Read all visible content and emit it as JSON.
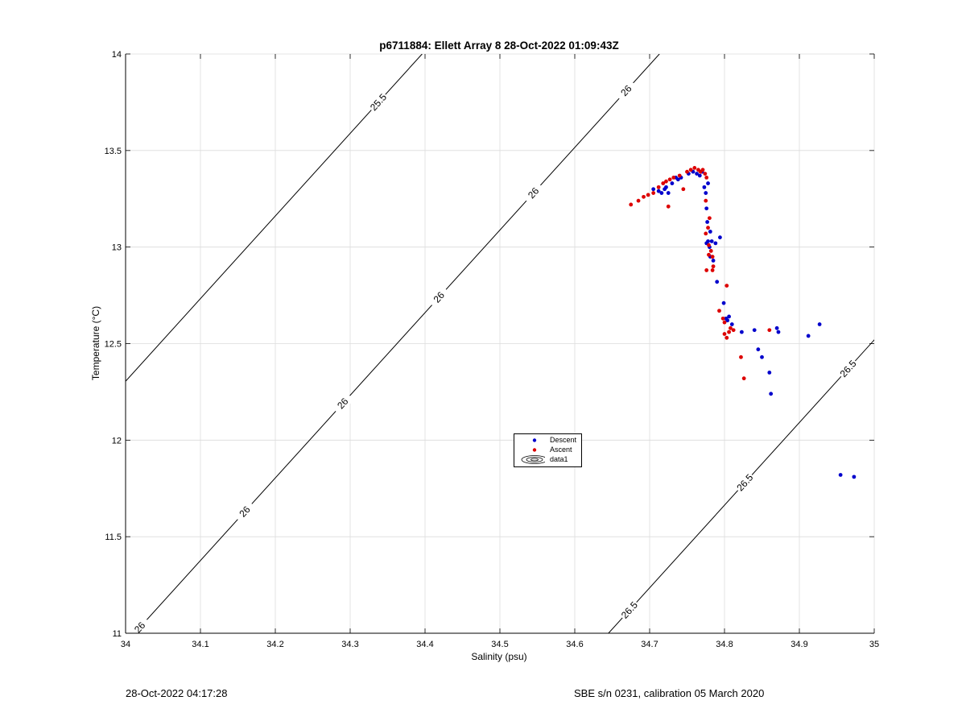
{
  "chart_data": {
    "type": "scatter",
    "title": "p6711884: Ellett Array 8 28-Oct-2022 01:09:43Z",
    "xlabel": "Salinity (psu)",
    "ylabel": "Temperature (°C)",
    "xlim": [
      34,
      35
    ],
    "ylim": [
      11,
      14
    ],
    "xticks": [
      "34",
      "34.1",
      "34.2",
      "34.3",
      "34.4",
      "34.5",
      "34.6",
      "34.7",
      "34.8",
      "34.9",
      "35"
    ],
    "yticks": [
      "11",
      "11.5",
      "12",
      "12.5",
      "13",
      "13.5",
      "14"
    ],
    "grid": true,
    "legend_position": "center",
    "legend": [
      "Descent",
      "Ascent",
      "data1"
    ],
    "colors": {
      "descent": "#0000cc",
      "ascent": "#dd0000",
      "contour": "#000000",
      "grid": "#dcdcdc"
    },
    "series": [
      {
        "name": "Descent",
        "points": [
          [
            34.705,
            13.3
          ],
          [
            34.712,
            13.29
          ],
          [
            34.716,
            13.28
          ],
          [
            34.72,
            13.3
          ],
          [
            34.722,
            13.31
          ],
          [
            34.725,
            13.28
          ],
          [
            34.73,
            13.33
          ],
          [
            34.735,
            13.36
          ],
          [
            34.738,
            13.35
          ],
          [
            34.742,
            13.36
          ],
          [
            34.752,
            13.38
          ],
          [
            34.758,
            13.39
          ],
          [
            34.763,
            13.38
          ],
          [
            34.767,
            13.37
          ],
          [
            34.77,
            13.39
          ],
          [
            34.773,
            13.31
          ],
          [
            34.775,
            13.28
          ],
          [
            34.778,
            13.33
          ],
          [
            34.776,
            13.2
          ],
          [
            34.777,
            13.13
          ],
          [
            34.781,
            13.08
          ],
          [
            34.778,
            13.03
          ],
          [
            34.776,
            13.02
          ],
          [
            34.78,
            13.0
          ],
          [
            34.783,
            13.03
          ],
          [
            34.788,
            13.02
          ],
          [
            34.794,
            13.05
          ],
          [
            34.781,
            12.95
          ],
          [
            34.785,
            12.93
          ],
          [
            34.79,
            12.82
          ],
          [
            34.799,
            12.71
          ],
          [
            34.802,
            12.63
          ],
          [
            34.806,
            12.64
          ],
          [
            34.81,
            12.6
          ],
          [
            34.804,
            12.62
          ],
          [
            34.823,
            12.56
          ],
          [
            34.84,
            12.57
          ],
          [
            34.87,
            12.58
          ],
          [
            34.872,
            12.56
          ],
          [
            34.912,
            12.54
          ],
          [
            34.927,
            12.6
          ],
          [
            34.845,
            12.47
          ],
          [
            34.85,
            12.43
          ],
          [
            34.86,
            12.35
          ],
          [
            34.862,
            12.24
          ],
          [
            34.955,
            11.82
          ],
          [
            34.973,
            11.81
          ]
        ]
      },
      {
        "name": "Ascent",
        "points": [
          [
            34.675,
            13.22
          ],
          [
            34.685,
            13.24
          ],
          [
            34.692,
            13.26
          ],
          [
            34.698,
            13.27
          ],
          [
            34.705,
            13.28
          ],
          [
            34.712,
            13.31
          ],
          [
            34.718,
            13.33
          ],
          [
            34.722,
            13.34
          ],
          [
            34.727,
            13.35
          ],
          [
            34.725,
            13.21
          ],
          [
            34.732,
            13.36
          ],
          [
            34.74,
            13.37
          ],
          [
            34.745,
            13.3
          ],
          [
            34.75,
            13.39
          ],
          [
            34.755,
            13.4
          ],
          [
            34.76,
            13.41
          ],
          [
            34.765,
            13.4
          ],
          [
            34.768,
            13.39
          ],
          [
            34.771,
            13.4
          ],
          [
            34.774,
            13.38
          ],
          [
            34.776,
            13.36
          ],
          [
            34.775,
            13.24
          ],
          [
            34.78,
            13.15
          ],
          [
            34.778,
            13.1
          ],
          [
            34.775,
            13.07
          ],
          [
            34.779,
            13.01
          ],
          [
            34.782,
            12.98
          ],
          [
            34.779,
            12.96
          ],
          [
            34.784,
            12.95
          ],
          [
            34.785,
            12.9
          ],
          [
            34.784,
            12.88
          ],
          [
            34.776,
            12.88
          ],
          [
            34.803,
            12.8
          ],
          [
            34.793,
            12.67
          ],
          [
            34.798,
            12.63
          ],
          [
            34.8,
            12.61
          ],
          [
            34.808,
            12.58
          ],
          [
            34.812,
            12.57
          ],
          [
            34.8,
            12.55
          ],
          [
            34.803,
            12.53
          ],
          [
            34.806,
            12.56
          ],
          [
            34.822,
            12.43
          ],
          [
            34.826,
            12.32
          ],
          [
            34.86,
            12.57
          ]
        ]
      }
    ],
    "contours": [
      {
        "level": 25.5,
        "x_at_ymin": 33.695,
        "labels": [
          [
            "25.5",
            13.75
          ]
        ]
      },
      {
        "level": 26,
        "x_at_ymin": 34.012,
        "labels": [
          [
            "26",
            11.03
          ],
          [
            "26",
            11.63
          ],
          [
            "26",
            12.19
          ],
          [
            "26",
            12.74
          ],
          [
            "26",
            13.28
          ],
          [
            "26",
            13.81
          ]
        ]
      },
      {
        "level": 26.5,
        "x_at_ymin": 34.645,
        "labels": [
          [
            "26.5",
            11.12
          ],
          [
            "26.5",
            11.78
          ],
          [
            "26.5",
            12.37
          ]
        ]
      }
    ]
  },
  "footer": {
    "left": "28-Oct-2022 04:17:28",
    "right": "SBE s/n 0231, calibration 05 March 2020"
  }
}
